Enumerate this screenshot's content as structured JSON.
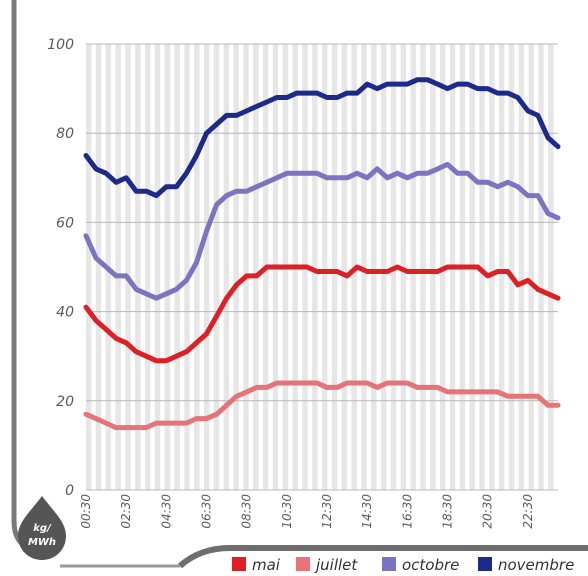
{
  "chart_data": {
    "type": "line",
    "ylabel": "kg/MWh",
    "ylim": [
      0,
      100
    ],
    "yticks": [
      "0",
      "20",
      "40",
      "60",
      "80",
      "100"
    ],
    "x_tick_labels": [
      "00:30",
      "02:30",
      "04:30",
      "06:30",
      "08:30",
      "10:30",
      "12:30",
      "14:30",
      "16:30",
      "18:30",
      "20:30",
      "22:30"
    ],
    "x": [
      0.5,
      1,
      1.5,
      2,
      2.5,
      3,
      3.5,
      4,
      4.5,
      5,
      5.5,
      6,
      6.5,
      7,
      7.5,
      8,
      8.5,
      9,
      9.5,
      10,
      10.5,
      11,
      11.5,
      12,
      12.5,
      13,
      13.5,
      14,
      14.5,
      15,
      15.5,
      16,
      16.5,
      17,
      17.5,
      18,
      18.5,
      19,
      19.5,
      20,
      20.5,
      21,
      21.5,
      22,
      22.5,
      23,
      23.5,
      24
    ],
    "series": [
      {
        "name": "mai",
        "color": "#dd1f26",
        "values": [
          41,
          38,
          36,
          34,
          33,
          31,
          30,
          29,
          29,
          30,
          31,
          33,
          35,
          39,
          43,
          46,
          48,
          48,
          50,
          50,
          50,
          50,
          50,
          49,
          49,
          49,
          48,
          50,
          49,
          49,
          49,
          50,
          49,
          49,
          49,
          49,
          50,
          50,
          50,
          50,
          48,
          49,
          49,
          46,
          47,
          45,
          44,
          43
        ]
      },
      {
        "name": "juillet",
        "color": "#e57378",
        "values": [
          17,
          16,
          15,
          14,
          14,
          14,
          14,
          15,
          15,
          15,
          15,
          16,
          16,
          17,
          19,
          21,
          22,
          23,
          23,
          24,
          24,
          24,
          24,
          24,
          23,
          23,
          24,
          24,
          24,
          23,
          24,
          24,
          24,
          23,
          23,
          23,
          22,
          22,
          22,
          22,
          22,
          22,
          21,
          21,
          21,
          21,
          19,
          19
        ]
      },
      {
        "name": "octobre",
        "color": "#7b74c1",
        "values": [
          57,
          52,
          50,
          48,
          48,
          45,
          44,
          43,
          44,
          45,
          47,
          51,
          58,
          64,
          66,
          67,
          67,
          68,
          69,
          70,
          71,
          71,
          71,
          71,
          70,
          70,
          70,
          71,
          70,
          72,
          70,
          71,
          70,
          71,
          71,
          72,
          73,
          71,
          71,
          69,
          69,
          68,
          69,
          68,
          66,
          66,
          62,
          61
        ]
      },
      {
        "name": "novembre",
        "color": "#1d2a8a",
        "values": [
          75,
          72,
          71,
          69,
          70,
          67,
          67,
          66,
          68,
          68,
          71,
          75,
          80,
          82,
          84,
          84,
          85,
          86,
          87,
          88,
          88,
          89,
          89,
          89,
          88,
          88,
          89,
          89,
          91,
          90,
          91,
          91,
          91,
          92,
          92,
          91,
          90,
          91,
          91,
          90,
          90,
          89,
          89,
          88,
          85,
          84,
          79,
          77
        ]
      }
    ],
    "legend_position": "bottom",
    "grid": true
  }
}
